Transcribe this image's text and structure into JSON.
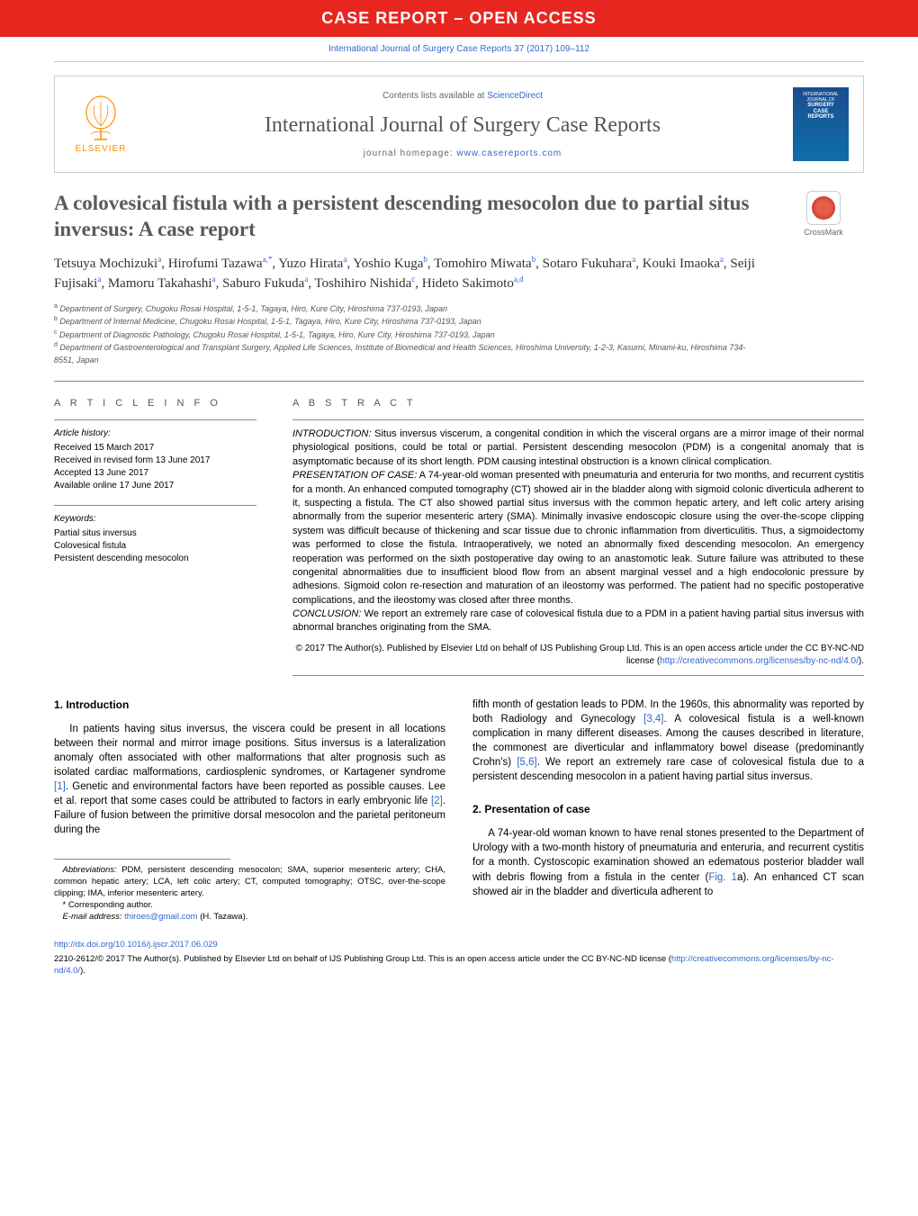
{
  "banner": {
    "text": "CASE REPORT – OPEN ACCESS",
    "bg": "#e6261f"
  },
  "citation": "International Journal of Surgery Case Reports 37 (2017) 109–112",
  "header": {
    "publisher": "ELSEVIER",
    "contents_prefix": "Contents lists available at ",
    "contents_link": "ScienceDirect",
    "journal": "International Journal of Surgery Case Reports",
    "homepage_prefix": "journal homepage: ",
    "homepage_link": "www.casereports.com",
    "cover_lines": [
      "INTERNATIONAL",
      "JOURNAL OF",
      "SURGERY",
      "CASE",
      "REPORTS"
    ]
  },
  "crossmark": {
    "label": "CrossMark"
  },
  "title": "A colovesical fistula with a persistent descending mesocolon due to partial situs inversus: A case report",
  "authors_html": "Tetsuya Mochizuki<sup>a</sup>, Hirofumi Tazawa<sup>a,*</sup>, Yuzo Hirata<sup>a</sup>, Yoshio Kuga<sup>b</sup>, Tomohiro Miwata<sup>b</sup>, Sotaro Fukuhara<sup>a</sup>, Kouki Imaoka<sup>a</sup>, Seiji Fujisaki<sup>a</sup>, Mamoru Takahashi<sup>a</sup>, Saburo Fukuda<sup>a</sup>, Toshihiro Nishida<sup>c</sup>, Hideto Sakimoto<sup>a,d</sup>",
  "affiliations": [
    "a Department of Surgery, Chugoku Rosai Hospital, 1-5-1, Tagaya, Hiro, Kure City, Hiroshima 737-0193, Japan",
    "b Department of Internal Medicine, Chugoku Rosai Hospital, 1-5-1, Tagaya, Hiro, Kure City, Hiroshima 737-0193, Japan",
    "c Department of Diagnostic Pathology, Chugoku Rosai Hospital, 1-5-1, Tagaya, Hiro, Kure City, Hiroshima 737-0193, Japan",
    "d Department of Gastroenterological and Transplant Surgery, Applied Life Sciences, Institute of Biomedical and Health Sciences, Hiroshima University, 1-2-3, Kasumi, Minami-ku, Hiroshima 734-8551, Japan"
  ],
  "info": {
    "heading": "A R T I C L E   I N F O",
    "history_head": "Article history:",
    "history": [
      "Received 15 March 2017",
      "Received in revised form 13 June 2017",
      "Accepted 13 June 2017",
      "Available online 17 June 2017"
    ],
    "keywords_head": "Keywords:",
    "keywords": [
      "Partial situs inversus",
      "Colovesical fistula",
      "Persistent descending mesocolon"
    ]
  },
  "abstract": {
    "heading": "A B S T R A C T",
    "intro_label": "INTRODUCTION:",
    "intro": " Situs inversus viscerum, a congenital condition in which the visceral organs are a mirror image of their normal physiological positions, could be total or partial. Persistent descending mesocolon (PDM) is a congenital anomaly that is asymptomatic because of its short length. PDM causing intestinal obstruction is a known clinical complication.",
    "case_label": "PRESENTATION OF CASE:",
    "case": " A 74-year-old woman presented with pneumaturia and enteruria for two months, and recurrent cystitis for a month. An enhanced computed tomography (CT) showed air in the bladder along with sigmoid colonic diverticula adherent to it, suspecting a fistula. The CT also showed partial situs inversus with the common hepatic artery, and left colic artery arising abnormally from the superior mesenteric artery (SMA). Minimally invasive endoscopic closure using the over-the-scope clipping system was difficult because of thickening and scar tissue due to chronic inflammation from diverticulitis. Thus, a sigmoidectomy was performed to close the fistula. Intraoperatively, we noted an abnormally fixed descending mesocolon. An emergency reoperation was performed on the sixth postoperative day owing to an anastomotic leak. Suture failure was attributed to these congenital abnormalities due to insufficient blood flow from an absent marginal vessel and a high endocolonic pressure by adhesions. Sigmoid colon re-resection and maturation of an ileostomy was performed. The patient had no specific postoperative complications, and the ileostomy was closed after three months.",
    "concl_label": "CONCLUSION:",
    "concl": " We report an extremely rare case of colovesical fistula due to a PDM in a patient having partial situs inversus with abnormal branches originating from the SMA.",
    "copyright": "© 2017 The Author(s). Published by Elsevier Ltd on behalf of IJS Publishing Group Ltd. This is an open access article under the CC BY-NC-ND license (",
    "cc_link": "http://creativecommons.org/licenses/by-nc-nd/4.0/",
    "copyright_close": ")."
  },
  "sections": {
    "s1_head": "1.  Introduction",
    "s1_p1": "In patients having situs inversus, the viscera could be present in all locations between their normal and mirror image positions. Situs inversus is a lateralization anomaly often associated with other malformations that alter prognosis such as isolated cardiac malformations, cardiosplenic syndromes, or Kartagener syndrome ",
    "ref1": "[1]",
    "s1_p1b": ". Genetic and environmental factors have been reported as possible causes. Lee et al. report that some cases could be attributed to factors in early embryonic life ",
    "ref2": "[2]",
    "s1_p1c": ". Failure of fusion between the primitive dorsal mesocolon and the parietal peritoneum during the",
    "s1_col2a": "fifth month of gestation leads to PDM. In the 1960s, this abnormality was reported by both Radiology and Gynecology ",
    "ref34": "[3,4]",
    "s1_col2b": ". A colovesical fistula is a well-known complication in many different diseases. Among the causes described in literature, the commonest are diverticular and inflammatory bowel disease (predominantly Crohn's) ",
    "ref56": "[5,6]",
    "s1_col2c": ". We report an extremely rare case of colovesical fistula due to a persistent descending mesocolon in a patient having partial situs inversus.",
    "s2_head": "2.  Presentation of case",
    "s2_p1a": "A 74-year-old woman known to have renal stones presented to the Department of Urology with a two-month history of pneumaturia and enteruria, and recurrent cystitis for a month. Cystoscopic examination showed an edematous posterior bladder wall with debris flowing from a fistula in the center (",
    "fig1": "Fig. 1",
    "s2_p1b": "a). An enhanced CT scan showed air in the bladder and diverticula adherent to"
  },
  "footnotes": {
    "abbrev_label": "Abbreviations:",
    "abbrev": " PDM, persistent descending mesocolon; SMA, superior mesenteric artery; CHA, common hepatic artery; LCA, left colic artery; CT, computed tomography; OTSC, over-the-scope clipping; IMA, inferior mesenteric artery.",
    "corr": "* Corresponding author.",
    "email_label": "E-mail address:",
    "email": "thiroes@gmail.com",
    "email_suffix": " (H. Tazawa)."
  },
  "footer": {
    "doi": "http://dx.doi.org/10.1016/j.ijscr.2017.06.029",
    "copy_a": "2210-2612/© 2017 The Author(s). Published by Elsevier Ltd on behalf of IJS Publishing Group Ltd. This is an open access article under the CC BY-NC-ND license (",
    "cc_link": "http://creativecommons.org/licenses/by-nc-nd/4.0/",
    "copy_b": ")."
  }
}
